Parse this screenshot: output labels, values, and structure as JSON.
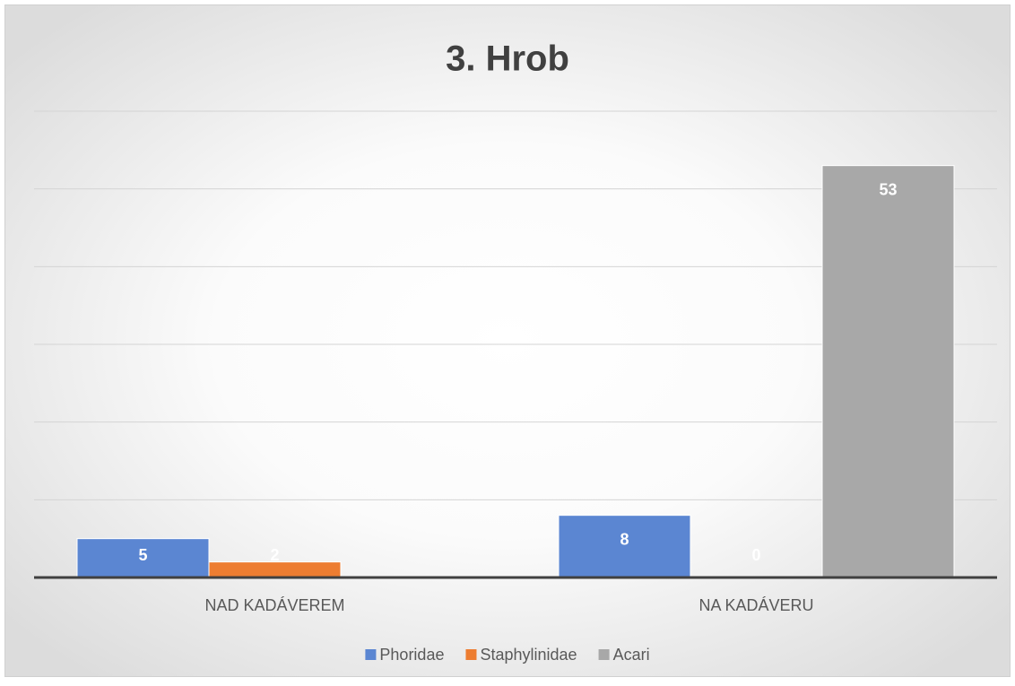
{
  "chart_data": {
    "type": "bar",
    "title": "3. Hrob",
    "categories": [
      "NAD KADÁVEREM",
      "NA KADÁVERU"
    ],
    "series": [
      {
        "name": "Phoridae",
        "color": "#5b86d2",
        "values": [
          5,
          8
        ]
      },
      {
        "name": "Staphylinidae",
        "color": "#ed7d31",
        "values": [
          2,
          0
        ]
      },
      {
        "name": "Acari",
        "color": "#a8a8a8",
        "values": [
          0,
          53
        ]
      }
    ],
    "ylim": [
      0,
      60
    ],
    "yticks": [
      0,
      10,
      20,
      30,
      40,
      50,
      60
    ],
    "grid": true,
    "legend": "bottom"
  }
}
